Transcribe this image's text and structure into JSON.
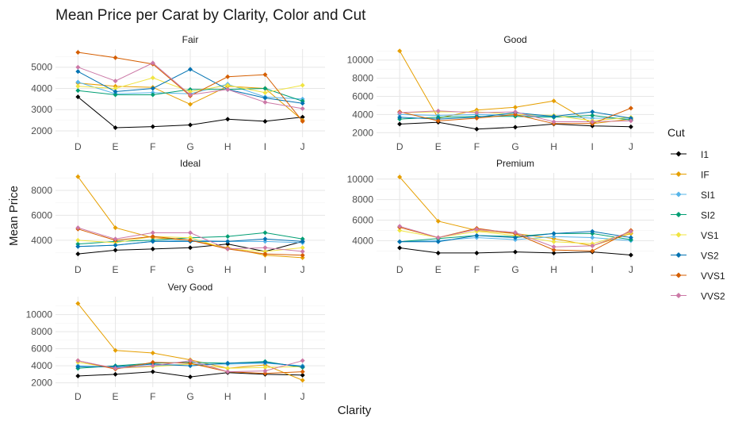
{
  "chart_data": {
    "type": "line",
    "title": "Mean Price per Carat by Clarity, Color and Cut",
    "xlabel": "Clarity",
    "ylabel": "Mean Price",
    "categories": [
      "D",
      "E",
      "F",
      "G",
      "H",
      "I",
      "J"
    ],
    "legend": {
      "title": "Cut",
      "position": "right"
    },
    "grid": true,
    "series_styles": [
      {
        "name": "I1",
        "color": "#000000"
      },
      {
        "name": "IF",
        "color": "#E69F00"
      },
      {
        "name": "SI1",
        "color": "#56B4E9"
      },
      {
        "name": "SI2",
        "color": "#009E73"
      },
      {
        "name": "VS1",
        "color": "#F0E442"
      },
      {
        "name": "VS2",
        "color": "#0072B2"
      },
      {
        "name": "VVS1",
        "color": "#D55E00"
      },
      {
        "name": "VVS2",
        "color": "#CC79A7"
      }
    ],
    "panels": [
      {
        "title": "Fair",
        "ylim": [
          1700,
          5850
        ],
        "yticks": [
          2000,
          3000,
          4000,
          5000
        ],
        "series": [
          {
            "name": "I1",
            "values": [
              3600,
              2150,
              2200,
              2280,
              2550,
              2450,
              2650
            ]
          },
          {
            "name": "IF",
            "values": [
              4250,
              4100,
              4050,
              3250,
              4100,
              4000,
              2500
            ]
          },
          {
            "name": "SI1",
            "values": [
              4300,
              3750,
              3800,
              3750,
              4200,
              3600,
              3500
            ]
          },
          {
            "name": "SI2",
            "values": [
              3900,
              3700,
              3700,
              3950,
              3950,
              4000,
              3400
            ]
          },
          {
            "name": "VS1",
            "values": [
              4100,
              4000,
              4500,
              3850,
              4150,
              3800,
              4150
            ]
          },
          {
            "name": "VS2",
            "values": [
              4800,
              3850,
              4000,
              4900,
              3950,
              3550,
              3300
            ]
          },
          {
            "name": "VVS1",
            "values": [
              5700,
              5450,
              5150,
              3650,
              4550,
              4650,
              2450
            ]
          },
          {
            "name": "VVS2",
            "values": [
              5000,
              4350,
              5200,
              3700,
              3950,
              3350,
              3050
            ]
          }
        ]
      },
      {
        "title": "Good",
        "ylim": [
          1500,
          11200
        ],
        "yticks": [
          2000,
          4000,
          6000,
          8000,
          10000
        ],
        "series": [
          {
            "name": "I1",
            "values": [
              2950,
              3150,
              2400,
              2600,
              2950,
              2750,
              2650
            ]
          },
          {
            "name": "IF",
            "values": [
              11000,
              3600,
              4500,
              4800,
              5500,
              3000,
              3500
            ]
          },
          {
            "name": "SI1",
            "values": [
              4000,
              3900,
              4000,
              3900,
              3800,
              3600,
              3600
            ]
          },
          {
            "name": "SI2",
            "values": [
              3500,
              3700,
              3800,
              3800,
              3700,
              3900,
              3400
            ]
          },
          {
            "name": "VS1",
            "values": [
              4200,
              4300,
              4300,
              4000,
              3900,
              3300,
              3700
            ]
          },
          {
            "name": "VS2",
            "values": [
              3700,
              3500,
              3700,
              4200,
              3800,
              4300,
              3600
            ]
          },
          {
            "name": "VVS1",
            "values": [
              4300,
              3300,
              3600,
              4000,
              3000,
              3000,
              4700
            ]
          },
          {
            "name": "VVS2",
            "values": [
              4200,
              4400,
              4200,
              4300,
              3200,
              3200,
              3300
            ]
          }
        ]
      },
      {
        "title": "Ideal",
        "ylim": [
          2400,
          9400
        ],
        "yticks": [
          4000,
          6000,
          8000
        ],
        "series": [
          {
            "name": "I1",
            "values": [
              2900,
              3200,
              3300,
              3400,
              3700,
              3100,
              3900
            ]
          },
          {
            "name": "IF",
            "values": [
              9100,
              5000,
              4200,
              4000,
              3400,
              2800,
              2600
            ]
          },
          {
            "name": "SI1",
            "values": [
              3500,
              3600,
              3900,
              4000,
              3900,
              3900,
              3800
            ]
          },
          {
            "name": "SI2",
            "values": [
              3700,
              3900,
              4000,
              4200,
              4300,
              4600,
              4100
            ]
          },
          {
            "name": "VS1",
            "values": [
              4000,
              3800,
              4300,
              4200,
              3300,
              3100,
              3400
            ]
          },
          {
            "name": "VS2",
            "values": [
              3500,
              3600,
              3900,
              3900,
              3900,
              4100,
              3900
            ]
          },
          {
            "name": "VVS1",
            "values": [
              4900,
              4000,
              4300,
              4000,
              3300,
              2900,
              2800
            ]
          },
          {
            "name": "VVS2",
            "values": [
              5000,
              4100,
              4600,
              4600,
              3300,
              3400,
              3100
            ]
          }
        ]
      },
      {
        "title": "Premium",
        "ylim": [
          2100,
          10600
        ],
        "yticks": [
          4000,
          6000,
          8000,
          10000
        ],
        "series": [
          {
            "name": "I1",
            "values": [
              3300,
              2800,
              2800,
              2900,
              2800,
              2900,
              2600
            ]
          },
          {
            "name": "IF",
            "values": [
              10200,
              5900,
              5000,
              4700,
              4200,
              3500,
              4700
            ]
          },
          {
            "name": "SI1",
            "values": [
              3900,
              4000,
              4300,
              4100,
              4400,
              4300,
              4000
            ]
          },
          {
            "name": "SI2",
            "values": [
              3900,
              4200,
              4500,
              4400,
              4700,
              4700,
              4100
            ]
          },
          {
            "name": "VS1",
            "values": [
              5000,
              4300,
              4900,
              4500,
              3900,
              3700,
              4800
            ]
          },
          {
            "name": "VS2",
            "values": [
              3900,
              3900,
              4500,
              4300,
              4700,
              4900,
              4300
            ]
          },
          {
            "name": "VVS1",
            "values": [
              5300,
              4300,
              5200,
              4700,
              3100,
              3000,
              5000
            ]
          },
          {
            "name": "VVS2",
            "values": [
              5400,
              4300,
              5100,
              4800,
              3400,
              3500,
              4900
            ]
          }
        ]
      },
      {
        "title": "Very Good",
        "ylim": [
          1500,
          12100
        ],
        "yticks": [
          2000,
          4000,
          6000,
          8000,
          10000
        ],
        "series": [
          {
            "name": "I1",
            "values": [
              2800,
              3000,
              3300,
              2700,
              3200,
              3000,
              2900
            ]
          },
          {
            "name": "IF",
            "values": [
              11300,
              5800,
              5500,
              4700,
              3700,
              4100,
              2300
            ]
          },
          {
            "name": "SI1",
            "values": [
              4000,
              3800,
              4000,
              4200,
              4200,
              4300,
              4000
            ]
          },
          {
            "name": "SI2",
            "values": [
              3700,
              4000,
              4300,
              4400,
              4300,
              4500,
              3800
            ]
          },
          {
            "name": "VS1",
            "values": [
              4400,
              3700,
              3900,
              4200,
              3700,
              3800,
              3900
            ]
          },
          {
            "name": "VS2",
            "values": [
              3900,
              3900,
              4200,
              4000,
              4300,
              4400,
              3900
            ]
          },
          {
            "name": "VVS1",
            "values": [
              4600,
              3600,
              4400,
              4300,
              3300,
              3100,
              3300
            ]
          },
          {
            "name": "VVS2",
            "values": [
              4600,
              3700,
              4000,
              4600,
              3300,
              3400,
              4600
            ]
          }
        ]
      }
    ]
  }
}
